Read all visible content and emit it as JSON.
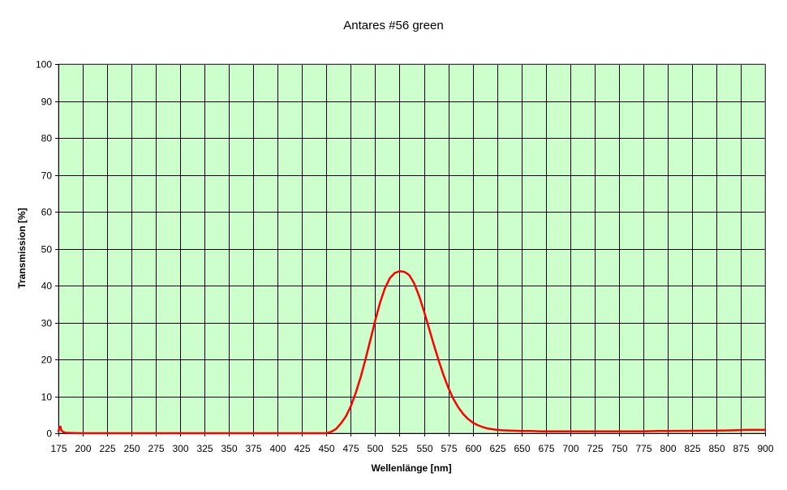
{
  "chart_data": {
    "type": "line",
    "title": "Antares #56 green",
    "xlabel": "Wellenlänge [nm]",
    "ylabel": "Transmission [%]",
    "xlim": [
      175,
      900
    ],
    "ylim": [
      0,
      100
    ],
    "x_ticks": [
      175,
      200,
      225,
      250,
      275,
      300,
      325,
      350,
      375,
      400,
      425,
      450,
      475,
      500,
      525,
      550,
      575,
      600,
      625,
      650,
      675,
      700,
      725,
      750,
      775,
      800,
      825,
      850,
      875,
      900
    ],
    "y_ticks": [
      0,
      10,
      20,
      30,
      40,
      50,
      60,
      70,
      80,
      90,
      100
    ],
    "grid": true,
    "legend": "none",
    "colors": {
      "plot_background": "#ccffcc",
      "grid": "#000000",
      "series": "#ff0000"
    },
    "series": [
      {
        "x": [
          175,
          177,
          178,
          180,
          183,
          190,
          200,
          250,
          300,
          350,
          400,
          440,
          450,
          455,
          460,
          465,
          470,
          475,
          480,
          485,
          490,
          495,
          500,
          505,
          510,
          515,
          520,
          525,
          530,
          533,
          535,
          540,
          545,
          550,
          555,
          560,
          565,
          570,
          575,
          580,
          585,
          590,
          595,
          600,
          605,
          610,
          615,
          620,
          625,
          630,
          640,
          650,
          660,
          670,
          680,
          700,
          750,
          775,
          790,
          800,
          850,
          870,
          880,
          890,
          900
        ],
        "y": [
          0.6,
          1.8,
          0.8,
          0.3,
          0.1,
          0.05,
          0,
          0,
          0,
          0,
          0,
          0,
          0,
          0.4,
          1.2,
          2.7,
          4.6,
          7.3,
          10.9,
          15.1,
          20.0,
          25.2,
          30.5,
          35.4,
          39.3,
          42.0,
          43.4,
          43.9,
          43.7,
          43.2,
          42.8,
          40.6,
          37.2,
          33.1,
          28.6,
          24.1,
          19.8,
          15.8,
          12.3,
          9.4,
          7.1,
          5.3,
          3.9,
          2.9,
          2.2,
          1.7,
          1.3,
          1.1,
          0.9,
          0.8,
          0.7,
          0.6,
          0.6,
          0.5,
          0.5,
          0.5,
          0.5,
          0.5,
          0.6,
          0.6,
          0.7,
          0.8,
          0.9,
          0.9,
          0.9
        ]
      }
    ]
  }
}
